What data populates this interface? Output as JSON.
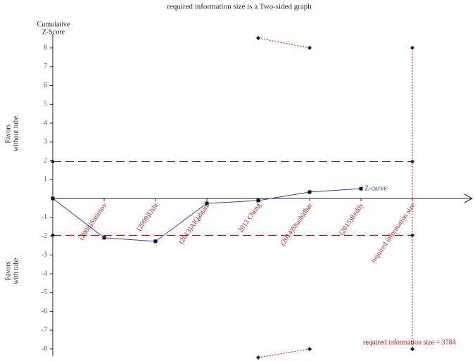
{
  "chart_data": {
    "type": "line",
    "title": "required information size is a Two-sided graph",
    "y_label": [
      "Cumulative",
      "Z-Score"
    ],
    "upper_region_label": [
      "Favors",
      "without tube"
    ],
    "lower_region_label": [
      "Favors",
      "with tube"
    ],
    "categories": [
      null,
      "(2008)Smirnov",
      "(2009)Uslu",
      "(2013)AlQahtani",
      "2013 Cheng",
      "(2014)Shashidhar",
      "(2015)Reddy",
      "required information size"
    ],
    "series": [
      {
        "name": "Z-curve",
        "color": "#3a3ab4",
        "values": [
          0,
          -2.09,
          -2.28,
          -0.26,
          -0.11,
          0.34,
          0.52,
          null
        ]
      }
    ],
    "monitoring_boundaries": [
      {
        "color": "#d01010",
        "values": [
          null,
          null,
          null,
          null,
          8.52,
          8.0,
          null,
          null
        ]
      },
      {
        "color": "#d01010",
        "values": [
          null,
          null,
          null,
          null,
          -8.45,
          -8.0,
          null,
          null
        ]
      }
    ],
    "conventional_boundaries": {
      "color": "#a01818",
      "values": [
        1.96,
        -1.96
      ]
    },
    "ris_boundary": {
      "color": "#d01010",
      "values": [
        8,
        -8
      ]
    },
    "annotation": "required information size = 3784",
    "ylim": [
      -8.6,
      8.6
    ],
    "yticks": [
      8,
      7,
      6,
      5,
      4,
      3,
      2,
      1,
      -1,
      -2,
      -3,
      -4,
      -5,
      -6,
      -7,
      -8
    ]
  }
}
